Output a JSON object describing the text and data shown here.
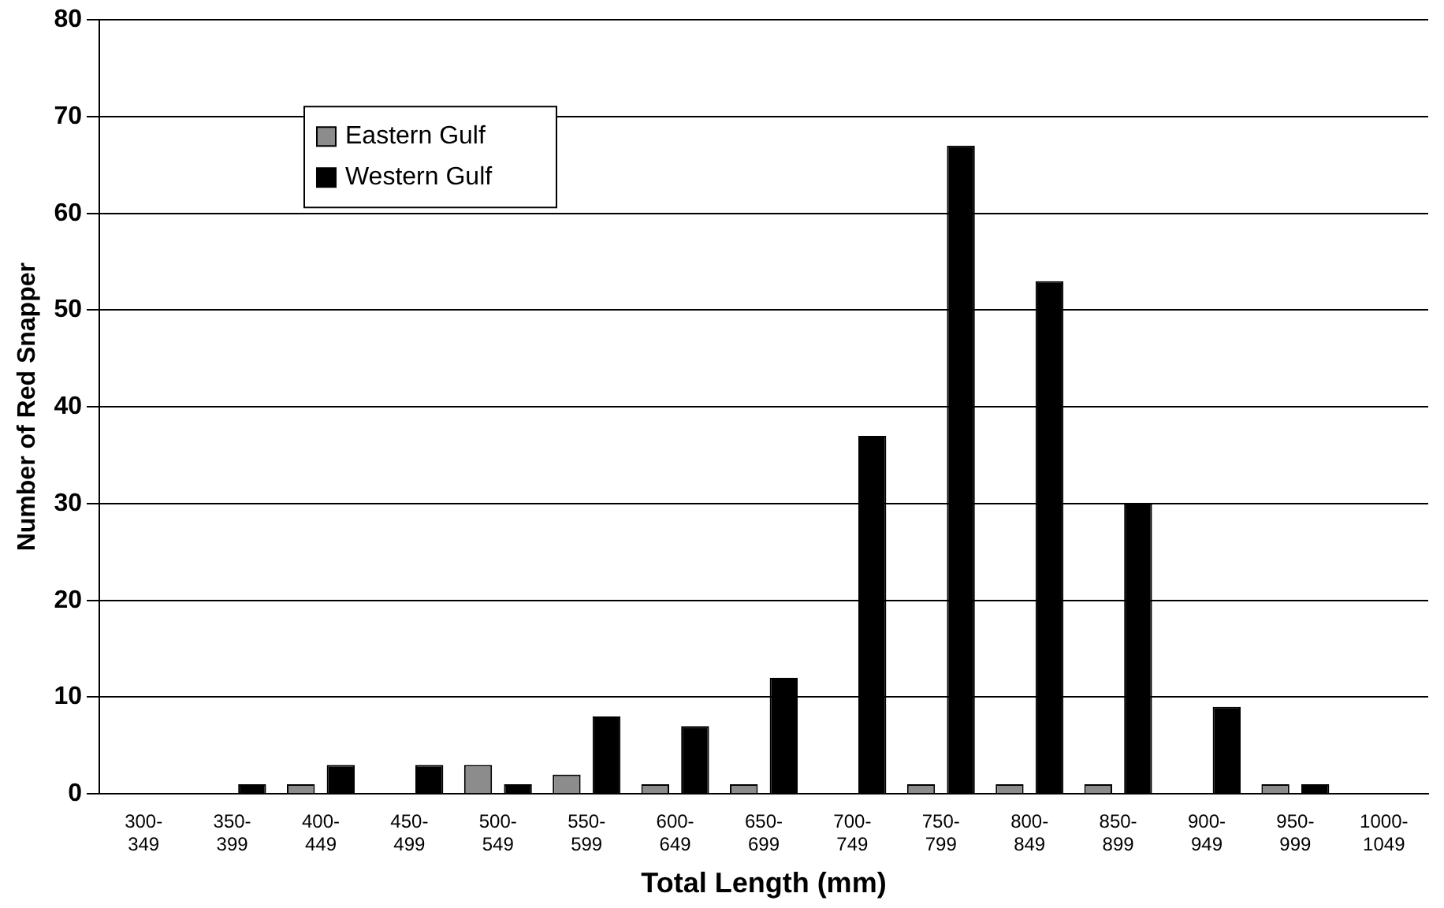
{
  "chart_data": {
    "type": "bar",
    "xlabel": "Total Length (mm)",
    "ylabel": "Number of Red Snapper",
    "categories": [
      "300-349",
      "350-399",
      "400-449",
      "450-499",
      "500-549",
      "550-599",
      "600-649",
      "650-699",
      "700-749",
      "750-799",
      "800-849",
      "850-899",
      "900-949",
      "950-999",
      "1000-1049"
    ],
    "series": [
      {
        "name": "Eastern Gulf",
        "color": "#8c8c8c",
        "values": [
          0,
          0,
          1,
          0,
          3,
          2,
          1,
          1,
          0,
          1,
          1,
          1,
          0,
          1,
          0
        ]
      },
      {
        "name": "Western Gulf",
        "color": "#000000",
        "values": [
          0,
          1,
          3,
          3,
          1,
          8,
          7,
          12,
          37,
          67,
          53,
          30,
          9,
          1,
          0
        ]
      }
    ],
    "ylim": [
      0,
      80
    ],
    "yticks": [
      0,
      10,
      20,
      30,
      40,
      50,
      60,
      70,
      80
    ],
    "grid": "y",
    "legend": "top left"
  }
}
